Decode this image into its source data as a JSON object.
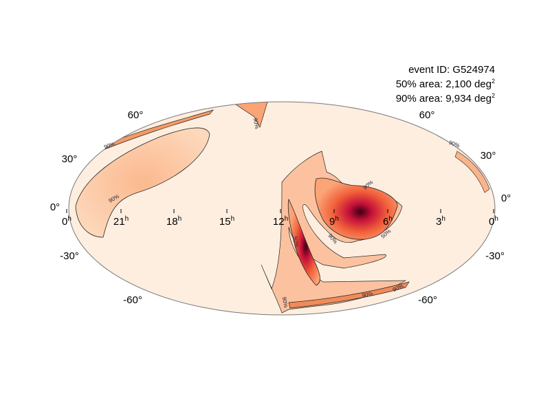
{
  "annotation": {
    "event": "event ID: G524974",
    "area50": {
      "text": "50% area: 2,100 deg",
      "sup": "2"
    },
    "area90": {
      "text": "90% area: 9,934 deg",
      "sup": "2"
    }
  },
  "ra_labels": [
    {
      "hour": "0",
      "sup": "h"
    },
    {
      "hour": "21",
      "sup": "h"
    },
    {
      "hour": "18",
      "sup": "h"
    },
    {
      "hour": "15",
      "sup": "h"
    },
    {
      "hour": "12",
      "sup": "h"
    },
    {
      "hour": "9",
      "sup": "h"
    },
    {
      "hour": "6",
      "sup": "h"
    },
    {
      "hour": "3",
      "sup": "h"
    },
    {
      "hour": "0",
      "sup": "h"
    }
  ],
  "dec_labels_left": [
    "60°",
    "30°",
    "0°",
    "-30°",
    "-60°"
  ],
  "dec_labels_right": [
    "60°",
    "30°",
    "0°",
    "-30°",
    "-60°"
  ],
  "contour_labels": [
    "90%",
    "90%",
    "90%",
    "90%",
    "50%",
    "90%",
    "50%",
    "90%",
    "90%",
    "90%",
    "90%"
  ]
}
